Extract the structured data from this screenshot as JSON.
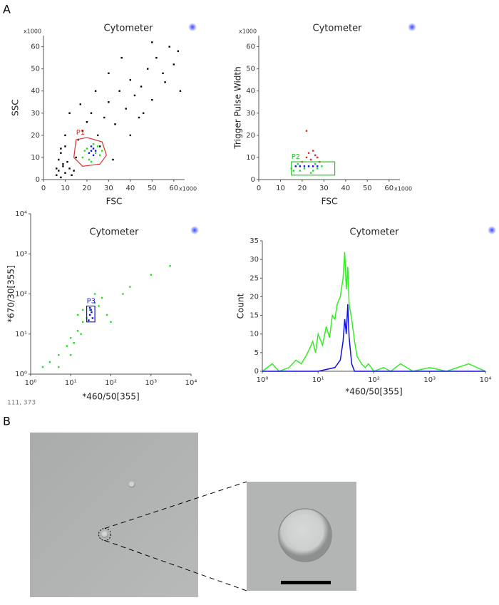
{
  "panel_labels": [
    "A",
    "B"
  ],
  "status": "111, 373",
  "chart_data": [
    {
      "type": "scatter",
      "title": "Cytometer",
      "x_label": "FSC",
      "y_label": "SSC",
      "x_multiplier": "x1000",
      "y_multiplier": "x1000",
      "xlim": [
        0,
        65
      ],
      "ylim": [
        0,
        65
      ],
      "xticks": [
        0,
        10,
        20,
        30,
        40,
        50,
        60
      ],
      "yticks": [
        0,
        10,
        20,
        30,
        40,
        50,
        60
      ],
      "grid": false,
      "series": [
        {
          "color": "#000000",
          "x": [
            6,
            7,
            8,
            9,
            10,
            11,
            12,
            13,
            7,
            8,
            9,
            10,
            6,
            14,
            15,
            16,
            18,
            20,
            22,
            25,
            28,
            30,
            33,
            35,
            38,
            40,
            42,
            45,
            48,
            50,
            52,
            55,
            58,
            60,
            62,
            12,
            17,
            24,
            30,
            36,
            44,
            50,
            56,
            63,
            8,
            10,
            26,
            32,
            40,
            46
          ],
          "values": [
            2,
            4,
            1,
            6,
            3,
            8,
            5,
            2,
            9,
            12,
            7,
            15,
            5,
            4,
            10,
            18,
            22,
            26,
            30,
            20,
            28,
            35,
            25,
            40,
            32,
            45,
            38,
            42,
            50,
            36,
            55,
            48,
            60,
            52,
            58,
            30,
            34,
            40,
            48,
            55,
            28,
            62,
            44,
            40,
            14,
            20,
            15,
            9,
            20,
            30
          ]
        },
        {
          "color": "#22dd22",
          "x": [
            18,
            20,
            21,
            23,
            24,
            25,
            26,
            19,
            22,
            27
          ],
          "values": [
            10,
            14,
            9,
            16,
            12,
            15,
            11,
            13,
            8,
            13
          ]
        },
        {
          "color": "#1010e0",
          "x": [
            21,
            22,
            23,
            22,
            24,
            23
          ],
          "values": [
            12,
            13,
            11,
            15,
            13,
            14
          ]
        }
      ],
      "gates": [
        {
          "label": "P1",
          "color": "#e03030",
          "x": [
            15,
            20,
            27,
            29,
            26,
            18,
            14
          ],
          "y": [
            18,
            19,
            17,
            11,
            7,
            6,
            10
          ]
        }
      ]
    },
    {
      "type": "scatter",
      "title": "Cytometer",
      "x_label": "FSC",
      "y_label": "Trigger Pulse Width",
      "x_multiplier": "x1000",
      "y_multiplier": "x1000",
      "xlim": [
        0,
        65
      ],
      "ylim": [
        0,
        65
      ],
      "xticks": [
        0,
        10,
        20,
        30,
        40,
        50,
        60
      ],
      "yticks": [
        0,
        10,
        20,
        30,
        40,
        50,
        60
      ],
      "grid": false,
      "series": [
        {
          "color": "#d03030",
          "x": [
            20,
            22,
            24,
            26,
            28,
            23,
            25,
            27,
            22
          ],
          "values": [
            8,
            10,
            9,
            11,
            8,
            12,
            13,
            10,
            22
          ]
        },
        {
          "color": "#22dd22",
          "x": [
            15,
            17,
            19,
            21,
            23,
            25,
            27,
            29,
            18,
            26,
            16,
            24
          ],
          "values": [
            5,
            6,
            4,
            5,
            6,
            4,
            5,
            6,
            7,
            7,
            4,
            3
          ]
        },
        {
          "color": "#1010e0",
          "x": [
            17,
            19,
            21,
            23,
            25,
            27
          ],
          "values": [
            6,
            6,
            6,
            6,
            6,
            6
          ]
        }
      ],
      "gates": [
        {
          "label": "P2",
          "color": "#22cc22",
          "x": [
            15,
            35,
            35,
            15
          ],
          "y": [
            2,
            2,
            8,
            8
          ]
        }
      ]
    },
    {
      "type": "scatter",
      "title": "Cytometer",
      "x_label": "*460/50[355]",
      "y_label": "*670/30[355]",
      "log_x": true,
      "log_y": true,
      "xlim": [
        1,
        10000
      ],
      "ylim": [
        1,
        10000
      ],
      "xticks": [
        {
          "value": 1,
          "label": "10⁰"
        },
        {
          "value": 10,
          "label": "10¹"
        },
        {
          "value": 100,
          "label": "10²"
        },
        {
          "value": 1000,
          "label": "10³"
        },
        {
          "value": 10000,
          "label": "10⁴"
        }
      ],
      "yticks": [
        {
          "value": 1,
          "label": "10⁰"
        },
        {
          "value": 10,
          "label": "10¹"
        },
        {
          "value": 100,
          "label": "10²"
        },
        {
          "value": 1000,
          "label": "10³"
        },
        {
          "value": 10000,
          "label": "10⁴"
        }
      ],
      "grid": false,
      "series": [
        {
          "color": "#22dd22",
          "x": [
            2,
            3,
            5,
            8,
            10,
            12,
            15,
            18,
            20,
            25,
            30,
            40,
            50,
            60,
            80,
            100,
            200,
            300,
            1000,
            3000,
            10,
            20,
            40,
            5,
            15
          ],
          "values": [
            1.5,
            2,
            3,
            5,
            8,
            6,
            12,
            10,
            20,
            25,
            40,
            60,
            50,
            80,
            30,
            20,
            100,
            150,
            300,
            500,
            3,
            40,
            100,
            1.5,
            30
          ]
        },
        {
          "color": "#1010e0",
          "x": [
            28,
            30,
            32,
            35,
            30,
            33
          ],
          "values": [
            22,
            30,
            40,
            25,
            45,
            35
          ]
        }
      ],
      "gates": [
        {
          "label": "P3",
          "color": "#1010e0",
          "x": [
            25,
            40,
            40,
            25
          ],
          "y": [
            20,
            20,
            50,
            50
          ]
        }
      ]
    },
    {
      "type": "line",
      "title": "Cytometer",
      "x_label": "*460/50[355]",
      "y_label": "Count",
      "log_x": true,
      "xlim": [
        1,
        10000
      ],
      "ylim": [
        0,
        35
      ],
      "xticks": [
        {
          "value": 1,
          "label": "10⁰"
        },
        {
          "value": 10,
          "label": "10¹"
        },
        {
          "value": 100,
          "label": "10²"
        },
        {
          "value": 1000,
          "label": "10³"
        },
        {
          "value": 10000,
          "label": "10⁴"
        }
      ],
      "yticks": [
        0,
        5,
        10,
        15,
        20,
        25,
        30,
        35
      ],
      "grid": false,
      "series": [
        {
          "color": "#33ee22",
          "x": [
            1,
            1.5,
            2,
            3,
            4,
            5,
            6,
            7,
            8,
            9,
            10,
            12,
            14,
            16,
            18,
            20,
            22,
            25,
            28,
            30,
            32,
            34,
            36,
            40,
            45,
            50,
            60,
            70,
            80,
            100,
            150,
            200,
            300,
            500,
            1000,
            2000,
            5000,
            10000
          ],
          "values": [
            0,
            2,
            0,
            1,
            3,
            2,
            4,
            6,
            8,
            5,
            10,
            7,
            12,
            9,
            15,
            14,
            18,
            20,
            25,
            32,
            22,
            28,
            18,
            14,
            8,
            4,
            2,
            1,
            2,
            0,
            1,
            0,
            2,
            0,
            1,
            0,
            2,
            0
          ]
        },
        {
          "color": "#1010e0",
          "x": [
            1,
            10,
            20,
            25,
            28,
            30,
            32,
            34,
            36,
            40,
            45,
            10000
          ],
          "values": [
            0,
            0,
            1,
            3,
            8,
            14,
            10,
            18,
            9,
            2,
            0,
            0
          ]
        }
      ]
    }
  ]
}
